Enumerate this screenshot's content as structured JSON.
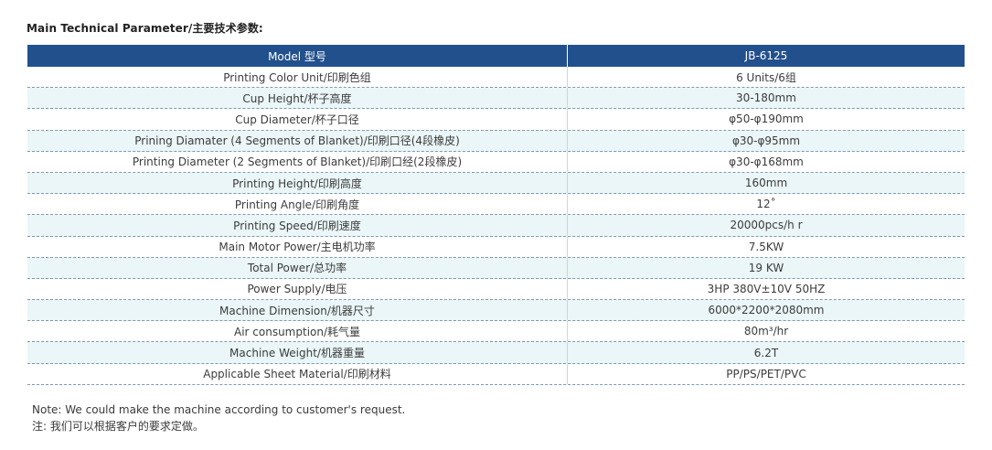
{
  "heading": "Main Technical Parameter/主要技术参数:",
  "table": {
    "header": {
      "left": "Model 型号",
      "right": "JB-6125"
    },
    "rows": [
      {
        "param": "Printing Color Unit/印刷色组",
        "value": "6 Units/6组"
      },
      {
        "param": "Cup Height/杯子高度",
        "value": "30-180mm"
      },
      {
        "param": "Cup Diameter/杯子口径",
        "value": "φ50-φ190mm"
      },
      {
        "param": "Prining Diamater (4 Segments of Blanket)/印刷口径(4段橡皮)",
        "value": "φ30-φ95mm"
      },
      {
        "param": "Printing Diameter (2 Segments of Blanket)/印刷口经(2段橡皮)",
        "value": "φ30-φ168mm"
      },
      {
        "param": "Printing Height/印刷高度",
        "value": "160mm"
      },
      {
        "param": "Printing Angle/印刷角度",
        "value": "12˚"
      },
      {
        "param": "Printing Speed/印刷速度",
        "value": "20000pcs/h r"
      },
      {
        "param": "Main Motor Power/主电机功率",
        "value": "7.5KW"
      },
      {
        "param": "Total Power/总功率",
        "value": "19 KW"
      },
      {
        "param": "Power Supply/电压",
        "value": "3HP 380V±10V 50HZ"
      },
      {
        "param": "Machine Dimension/机器尺寸",
        "value": "6000*2200*2080mm"
      },
      {
        "param": "Air consumption/耗气量",
        "value": "80m³/hr"
      },
      {
        "param": "Machine Weight/机器重量",
        "value": "6.2T"
      },
      {
        "param": "Applicable Sheet Material/印刷材料",
        "value": "PP/PS/PET/PVC"
      }
    ]
  },
  "notes": {
    "en": "Note: We could make the machine according to customer's request.",
    "cn": "注: 我们可以根据客户的要求定做。"
  }
}
